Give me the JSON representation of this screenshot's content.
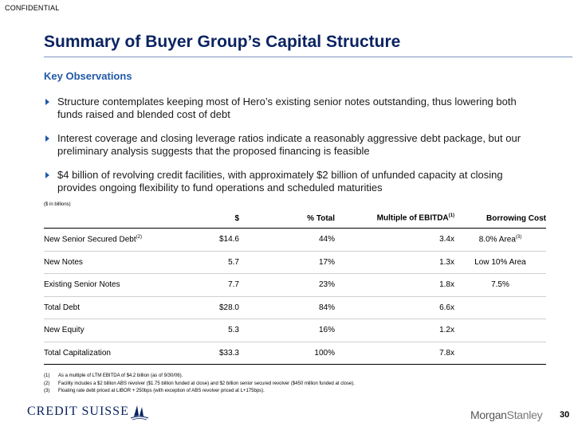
{
  "header": {
    "confidential": "CONFIDENTIAL"
  },
  "page": {
    "title": "Summary of Buyer Group’s Capital Structure",
    "number": "30"
  },
  "observations": {
    "heading": "Key Observations",
    "bullets": [
      "Structure contemplates keeping most of Hero’s existing senior notes outstanding, thus lowering both funds raised and blended cost of debt",
      "Interest coverage and closing leverage ratios indicate a reasonably aggressive debt package, but our preliminary analysis suggests that the proposed financing is feasible",
      "$4 billion of revolving credit facilities, with approximately $2 billion of unfunded capacity at closing provides ongoing flexibility to fund operations and scheduled maturities"
    ]
  },
  "table": {
    "units": "($ in billions)",
    "headers": {
      "dollars": "$",
      "pct_total": "% Total",
      "multiple": "Multiple of EBITDA",
      "multiple_sup": "(1)",
      "borrowing_cost": "Borrowing Cost"
    },
    "rows": [
      {
        "label": "New Senior Secured Debt",
        "label_sup": "(2)",
        "dollars": "$14.6",
        "pct": "44%",
        "multiple": "3.4x",
        "cost": "8.0% Area",
        "cost_sup": "(3)"
      },
      {
        "label": "New Notes",
        "label_sup": "",
        "dollars": "5.7",
        "pct": "17%",
        "multiple": "1.3x",
        "cost": "Low 10% Area",
        "cost_sup": ""
      },
      {
        "label": "Existing Senior Notes",
        "label_sup": "",
        "dollars": "7.7",
        "pct": "23%",
        "multiple": "1.8x",
        "cost": "7.5%",
        "cost_sup": ""
      },
      {
        "label": "Total Debt",
        "label_sup": "",
        "dollars": "$28.0",
        "pct": "84%",
        "multiple": "6.6x",
        "cost": "",
        "cost_sup": ""
      },
      {
        "label": "New Equity",
        "label_sup": "",
        "dollars": "5.3",
        "pct": "16%",
        "multiple": "1.2x",
        "cost": "",
        "cost_sup": ""
      },
      {
        "label": "Total Capitalization",
        "label_sup": "",
        "dollars": "$33.3",
        "pct": "100%",
        "multiple": "7.8x",
        "cost": "",
        "cost_sup": ""
      }
    ]
  },
  "footnotes": [
    {
      "num": "(1)",
      "text": "As a multiple of LTM EBITDA of $4.2 billion (as of 9/30/06)."
    },
    {
      "num": "(2)",
      "text": "Facility includes a $2 billion ABS revolver ($1.75 billion funded at close) and $2 billion senior secured revolver ($450 million funded at close)."
    },
    {
      "num": "(3)",
      "text": "Floating rate debt priced at LIBOR + 250bps (with exception of ABS revolver priced at L+175bps)."
    }
  ],
  "logos": {
    "left": "CREDIT SUISSE",
    "right_a": "Morgan",
    "right_b": "Stanley"
  },
  "colors": {
    "title": "#0a2361",
    "accent": "#2259a8"
  }
}
